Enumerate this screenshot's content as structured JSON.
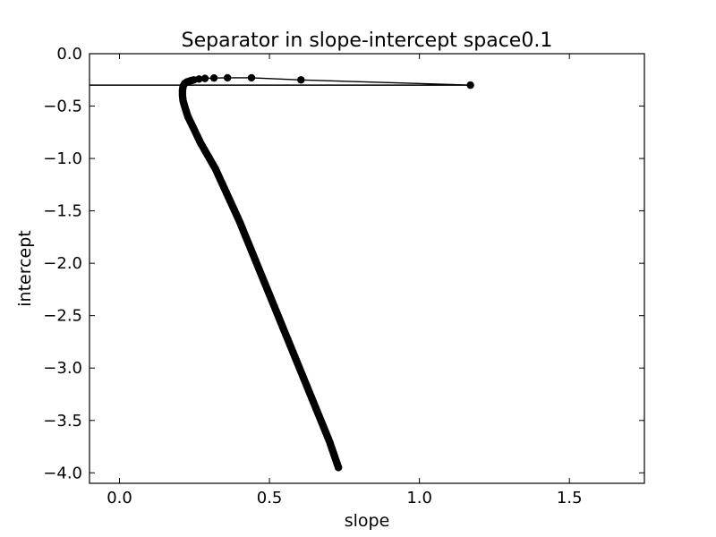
{
  "chart_data": {
    "type": "line",
    "title": "Separator in slope-intercept space0.1",
    "xlabel": "slope",
    "ylabel": "intercept",
    "xlim": [
      -0.1,
      1.75
    ],
    "ylim": [
      -4.1,
      0.0
    ],
    "xticks": [
      {
        "value": 0.0,
        "label": "0.0"
      },
      {
        "value": 0.5,
        "label": "0.5"
      },
      {
        "value": 1.0,
        "label": "1.0"
      },
      {
        "value": 1.5,
        "label": "1.5"
      }
    ],
    "yticks": [
      {
        "value": 0.0,
        "label": "0.0"
      },
      {
        "value": -0.5,
        "label": "−0.5"
      },
      {
        "value": -1.0,
        "label": "−1.0"
      },
      {
        "value": -1.5,
        "label": "−1.5"
      },
      {
        "value": -2.0,
        "label": "−2.0"
      },
      {
        "value": -2.5,
        "label": "−2.5"
      },
      {
        "value": -3.0,
        "label": "−3.0"
      },
      {
        "value": -3.5,
        "label": "−3.5"
      },
      {
        "value": -4.0,
        "label": "−4.0"
      }
    ],
    "grid": false,
    "series": [
      {
        "x": [
          -0.1,
          1.17,
          0.605,
          0.44,
          0.36,
          0.315,
          0.285,
          0.265,
          0.248,
          0.235,
          0.225,
          0.217,
          0.212,
          0.21,
          0.21,
          0.212,
          0.217,
          0.228,
          0.245,
          0.27,
          0.32,
          0.4,
          0.5,
          0.6,
          0.7,
          0.73
        ],
        "y": [
          -0.3,
          -0.3,
          -0.25,
          -0.23,
          -0.23,
          -0.232,
          -0.236,
          -0.242,
          -0.25,
          -0.26,
          -0.27,
          -0.285,
          -0.31,
          -0.35,
          -0.4,
          -0.45,
          -0.5,
          -0.6,
          -0.7,
          -0.85,
          -1.1,
          -1.6,
          -2.3,
          -3.0,
          -3.7,
          -3.95
        ],
        "marker": "circle",
        "color": "#000000"
      }
    ]
  }
}
